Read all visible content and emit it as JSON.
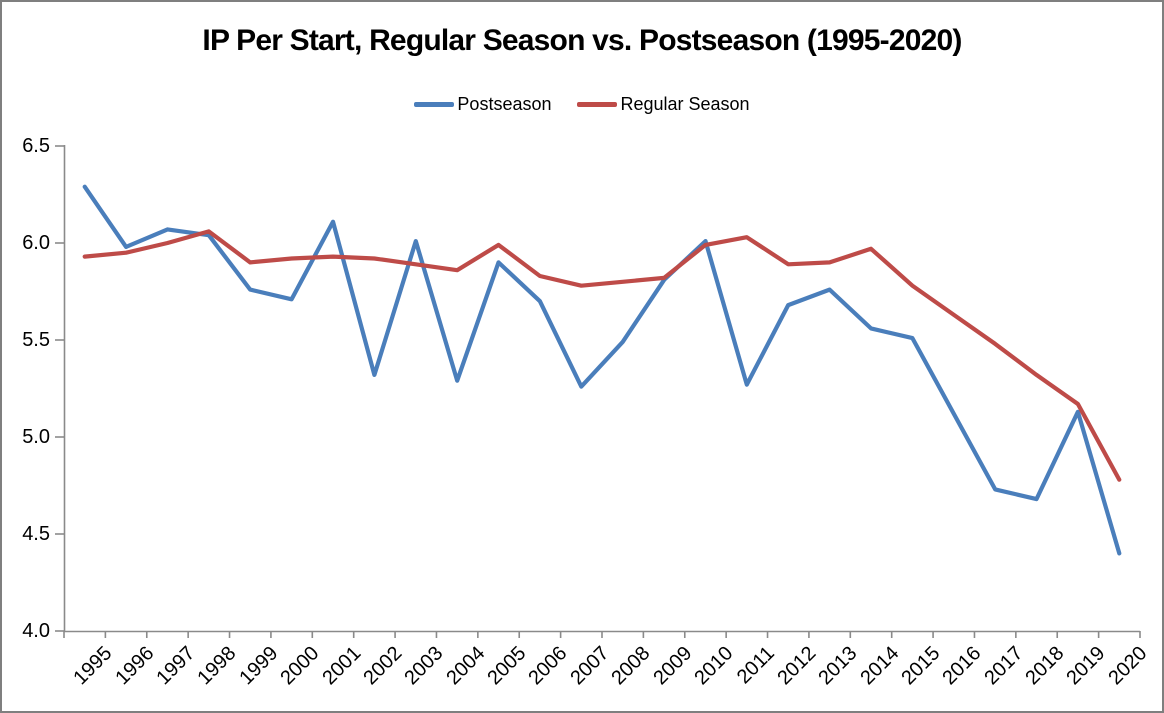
{
  "window": {
    "background": "#ffffff",
    "border_color": "#7f7f7f"
  },
  "chart_data": {
    "type": "line",
    "title": "IP Per Start, Regular Season vs. Postseason (1995-2020)",
    "categories": [
      "1995",
      "1996",
      "1997",
      "1998",
      "1999",
      "2000",
      "2001",
      "2002",
      "2003",
      "2004",
      "2005",
      "2006",
      "2007",
      "2008",
      "2009",
      "2010",
      "2011",
      "2012",
      "2013",
      "2014",
      "2015",
      "2016",
      "2017",
      "2018",
      "2019",
      "2020"
    ],
    "series": [
      {
        "name": "Postseason",
        "color": "#4A7EBB",
        "values": [
          6.29,
          5.98,
          6.07,
          6.04,
          5.76,
          5.71,
          6.11,
          5.32,
          6.01,
          5.29,
          5.9,
          5.7,
          5.26,
          5.49,
          5.81,
          6.01,
          5.27,
          5.68,
          5.76,
          5.56,
          5.51,
          5.12,
          4.73,
          4.68,
          5.13,
          4.4
        ]
      },
      {
        "name": "Regular Season",
        "color": "#BE4B48",
        "values": [
          5.93,
          5.95,
          6.0,
          6.06,
          5.9,
          5.92,
          5.93,
          5.92,
          5.89,
          5.86,
          5.99,
          5.83,
          5.78,
          5.8,
          5.82,
          5.99,
          6.03,
          5.89,
          5.9,
          5.97,
          5.78,
          5.63,
          5.48,
          5.32,
          5.17,
          4.78
        ]
      }
    ],
    "xlabel": "",
    "ylabel": "",
    "ylim": [
      4.0,
      6.5
    ],
    "y_tick_labels": [
      "6.5",
      "6.0",
      "5.5",
      "5.0",
      "4.5",
      "4.0"
    ],
    "grid": false,
    "legend_position": "top-center",
    "axis_color": "#8a8a8a",
    "tick_label_color": "#000000"
  }
}
